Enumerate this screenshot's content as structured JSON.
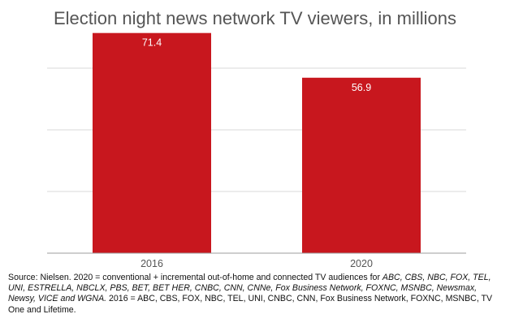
{
  "chart_data": {
    "type": "bar",
    "title": "Election night news network TV viewers, in millions",
    "categories": [
      "2016",
      "2020"
    ],
    "values": [
      71.4,
      56.9
    ],
    "data_labels": [
      "71.4",
      "56.9"
    ],
    "xlabel": "",
    "ylabel": "",
    "ylim": [
      0,
      80
    ],
    "gridlines": [
      20,
      40,
      60
    ],
    "grid": true,
    "legend": "none",
    "bar_color": "#c8171e",
    "label_color": "#ffffff"
  },
  "source": {
    "prefix": "Source: Nielsen. 2020 = conventional + incremental out-of-home and connected TV audiences for ",
    "networks_2020": "ABC, CBS, NBC, FOX, TEL, UNI, ESTRELLA, NBCLX, PBS, BET, BET HER, CNBC, CNN, CNNe, Fox Business Network, FOXNC, MSNBC, Newsmax, Newsy, VICE and WGNA.",
    "text_2016": " 2016 = ABC, CBS, FOX, NBC, TEL, UNI, CNBC, CNN, Fox Business Network, FOXNC, MSNBC, TV One and Lifetime."
  }
}
